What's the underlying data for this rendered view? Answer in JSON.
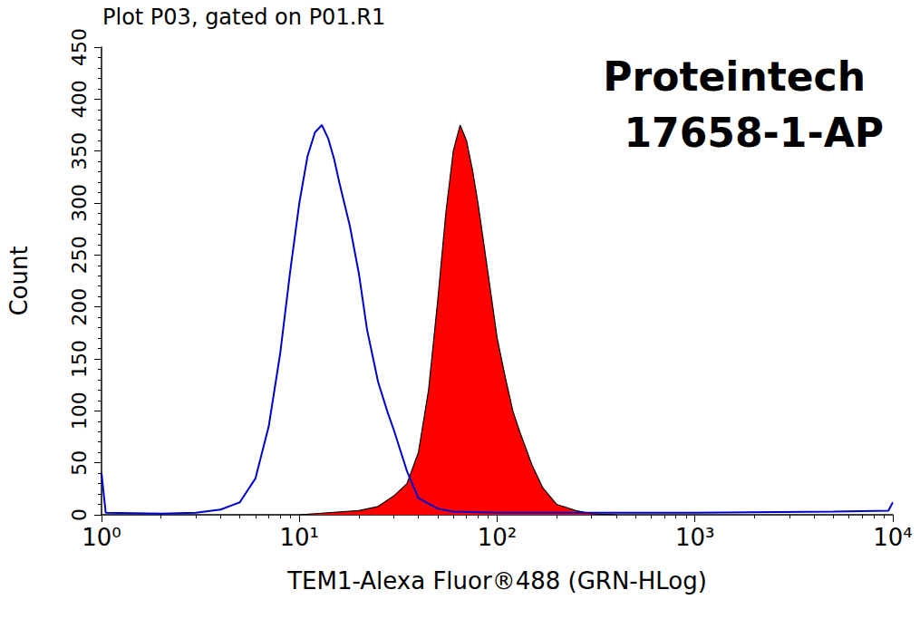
{
  "chart_data": {
    "type": "line",
    "title": "Plot P03, gated on P01.R1",
    "annotations": [
      "Proteintech",
      "17658-1-AP"
    ],
    "x_label": "TEM1-Alexa Fluor®488 (GRN-HLog)",
    "y_label": "Count",
    "log": "x",
    "grid": false,
    "xlim": [
      1,
      10000
    ],
    "xticks": [
      {
        "value": 1,
        "label": "10⁰"
      },
      {
        "value": 10,
        "label": "10¹"
      },
      {
        "value": 100,
        "label": "10²"
      },
      {
        "value": 1000,
        "label": "10³"
      },
      {
        "value": 10000,
        "label": "10⁴"
      }
    ],
    "ylim": [
      0,
      450
    ],
    "yticks": [
      0,
      50,
      100,
      150,
      200,
      250,
      300,
      350,
      400,
      450
    ],
    "series": [
      {
        "type": "line",
        "color": "#0000cc",
        "x": [
          1,
          1.05,
          2,
          3,
          4,
          5,
          6,
          7,
          8,
          9,
          10,
          11,
          12,
          13,
          14,
          15,
          16,
          18,
          20,
          22,
          25,
          28,
          30,
          35,
          40,
          50,
          60,
          100,
          1000,
          5000,
          9500,
          10000
        ],
        "values": [
          40,
          2,
          1,
          2,
          5,
          12,
          35,
          85,
          155,
          235,
          300,
          345,
          368,
          375,
          362,
          342,
          318,
          278,
          232,
          178,
          128,
          98,
          82,
          42,
          16,
          6,
          3,
          2,
          2,
          3,
          4,
          12
        ]
      },
      {
        "type": "area",
        "color": "#ff0000",
        "x": [
          10,
          20,
          25,
          30,
          35,
          40,
          45,
          50,
          55,
          60,
          65,
          70,
          75,
          80,
          90,
          100,
          110,
          120,
          130,
          150,
          170,
          200,
          250,
          300,
          400
        ],
        "values": [
          0,
          4,
          8,
          18,
          30,
          60,
          120,
          205,
          290,
          350,
          375,
          360,
          332,
          300,
          232,
          170,
          132,
          100,
          80,
          48,
          26,
          10,
          4,
          1,
          0
        ]
      }
    ]
  }
}
